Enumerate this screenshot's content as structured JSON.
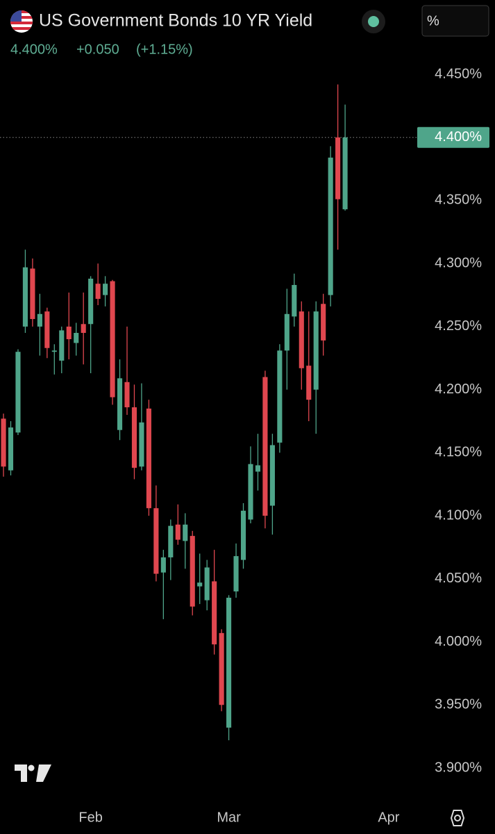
{
  "header": {
    "title": "US Government Bonds 10 YR Yield",
    "price": "4.400%",
    "change": "+0.050",
    "change_percent": "(+1.15%)",
    "unit_button": "%"
  },
  "chart_data": {
    "type": "candlestick",
    "up_color": "#4fa58a",
    "down_color": "#e0474f",
    "open": [
      4.177,
      4.136,
      4.166,
      4.25,
      4.296,
      4.25,
      4.262,
      4.23,
      4.223,
      4.25,
      4.237,
      4.252,
      4.252,
      4.284,
      4.275,
      4.286,
      4.168,
      4.206,
      4.186,
      4.139,
      4.185,
      4.106,
      4.055,
      4.067,
      4.093,
      4.08,
      4.084,
      4.044,
      4.033,
      4.048,
      4.007,
      3.932,
      4.04,
      4.065,
      4.097,
      4.135,
      4.21,
      4.108,
      4.158,
      4.231,
      4.258,
      4.262,
      4.219,
      4.2,
      4.268,
      4.275,
      4.4,
      4.343
    ],
    "high": [
      4.181,
      4.175,
      4.232,
      4.311,
      4.304,
      4.276,
      4.265,
      4.236,
      4.25,
      4.277,
      4.253,
      4.277,
      4.29,
      4.3,
      4.29,
      4.287,
      4.224,
      4.25,
      4.204,
      4.205,
      4.192,
      4.124,
      4.073,
      4.097,
      4.109,
      4.102,
      4.088,
      4.07,
      4.065,
      4.073,
      4.01,
      4.037,
      4.078,
      4.11,
      4.155,
      4.165,
      4.215,
      4.165,
      4.236,
      4.28,
      4.292,
      4.27,
      4.262,
      4.27,
      4.276,
      4.393,
      4.442,
      4.426
    ],
    "low": [
      4.131,
      4.132,
      4.164,
      4.245,
      4.25,
      4.227,
      4.225,
      4.212,
      4.213,
      4.224,
      4.227,
      4.22,
      4.213,
      4.267,
      4.266,
      4.188,
      4.16,
      4.18,
      4.129,
      4.136,
      4.1,
      4.048,
      4.018,
      4.049,
      4.077,
      4.058,
      4.021,
      4.03,
      4.025,
      3.99,
      3.945,
      3.922,
      4.035,
      4.058,
      4.094,
      4.12,
      4.09,
      4.085,
      4.15,
      4.2,
      4.25,
      4.2,
      4.175,
      4.165,
      4.227,
      4.266,
      4.311,
      4.342
    ],
    "close": [
      4.139,
      4.17,
      4.23,
      4.297,
      4.256,
      4.26,
      4.233,
      4.231,
      4.247,
      4.24,
      4.245,
      4.245,
      4.288,
      4.272,
      4.284,
      4.194,
      4.209,
      4.186,
      4.138,
      4.174,
      4.106,
      4.054,
      4.067,
      4.092,
      4.081,
      4.093,
      4.028,
      4.047,
      4.059,
      3.998,
      3.95,
      4.035,
      4.068,
      4.104,
      4.141,
      4.14,
      4.1,
      4.156,
      4.231,
      4.26,
      4.283,
      4.217,
      4.192,
      4.262,
      4.239,
      4.384,
      4.351,
      4.4
    ],
    "xlim": [
      -0.48,
      56.83
    ],
    "xticks": [
      {
        "value": 12,
        "label": "Feb"
      },
      {
        "value": 31,
        "label": "Mar"
      },
      {
        "value": 53,
        "label": "Apr"
      }
    ],
    "ylim": [
      3.88,
      4.46
    ],
    "yticks": [
      {
        "value": 3.9,
        "label": "3.900%"
      },
      {
        "value": 3.95,
        "label": "3.950%"
      },
      {
        "value": 4.0,
        "label": "4.000%"
      },
      {
        "value": 4.05,
        "label": "4.050%"
      },
      {
        "value": 4.1,
        "label": "4.100%"
      },
      {
        "value": 4.15,
        "label": "4.150%"
      },
      {
        "value": 4.2,
        "label": "4.200%"
      },
      {
        "value": 4.25,
        "label": "4.250%"
      },
      {
        "value": 4.3,
        "label": "4.300%"
      },
      {
        "value": 4.35,
        "label": "4.350%"
      },
      {
        "value": 4.4,
        "label": "4.400%"
      },
      {
        "value": 4.45,
        "label": "4.450%"
      }
    ],
    "last_price": {
      "value": 4.4,
      "label": "4.400%"
    },
    "grid": false
  }
}
